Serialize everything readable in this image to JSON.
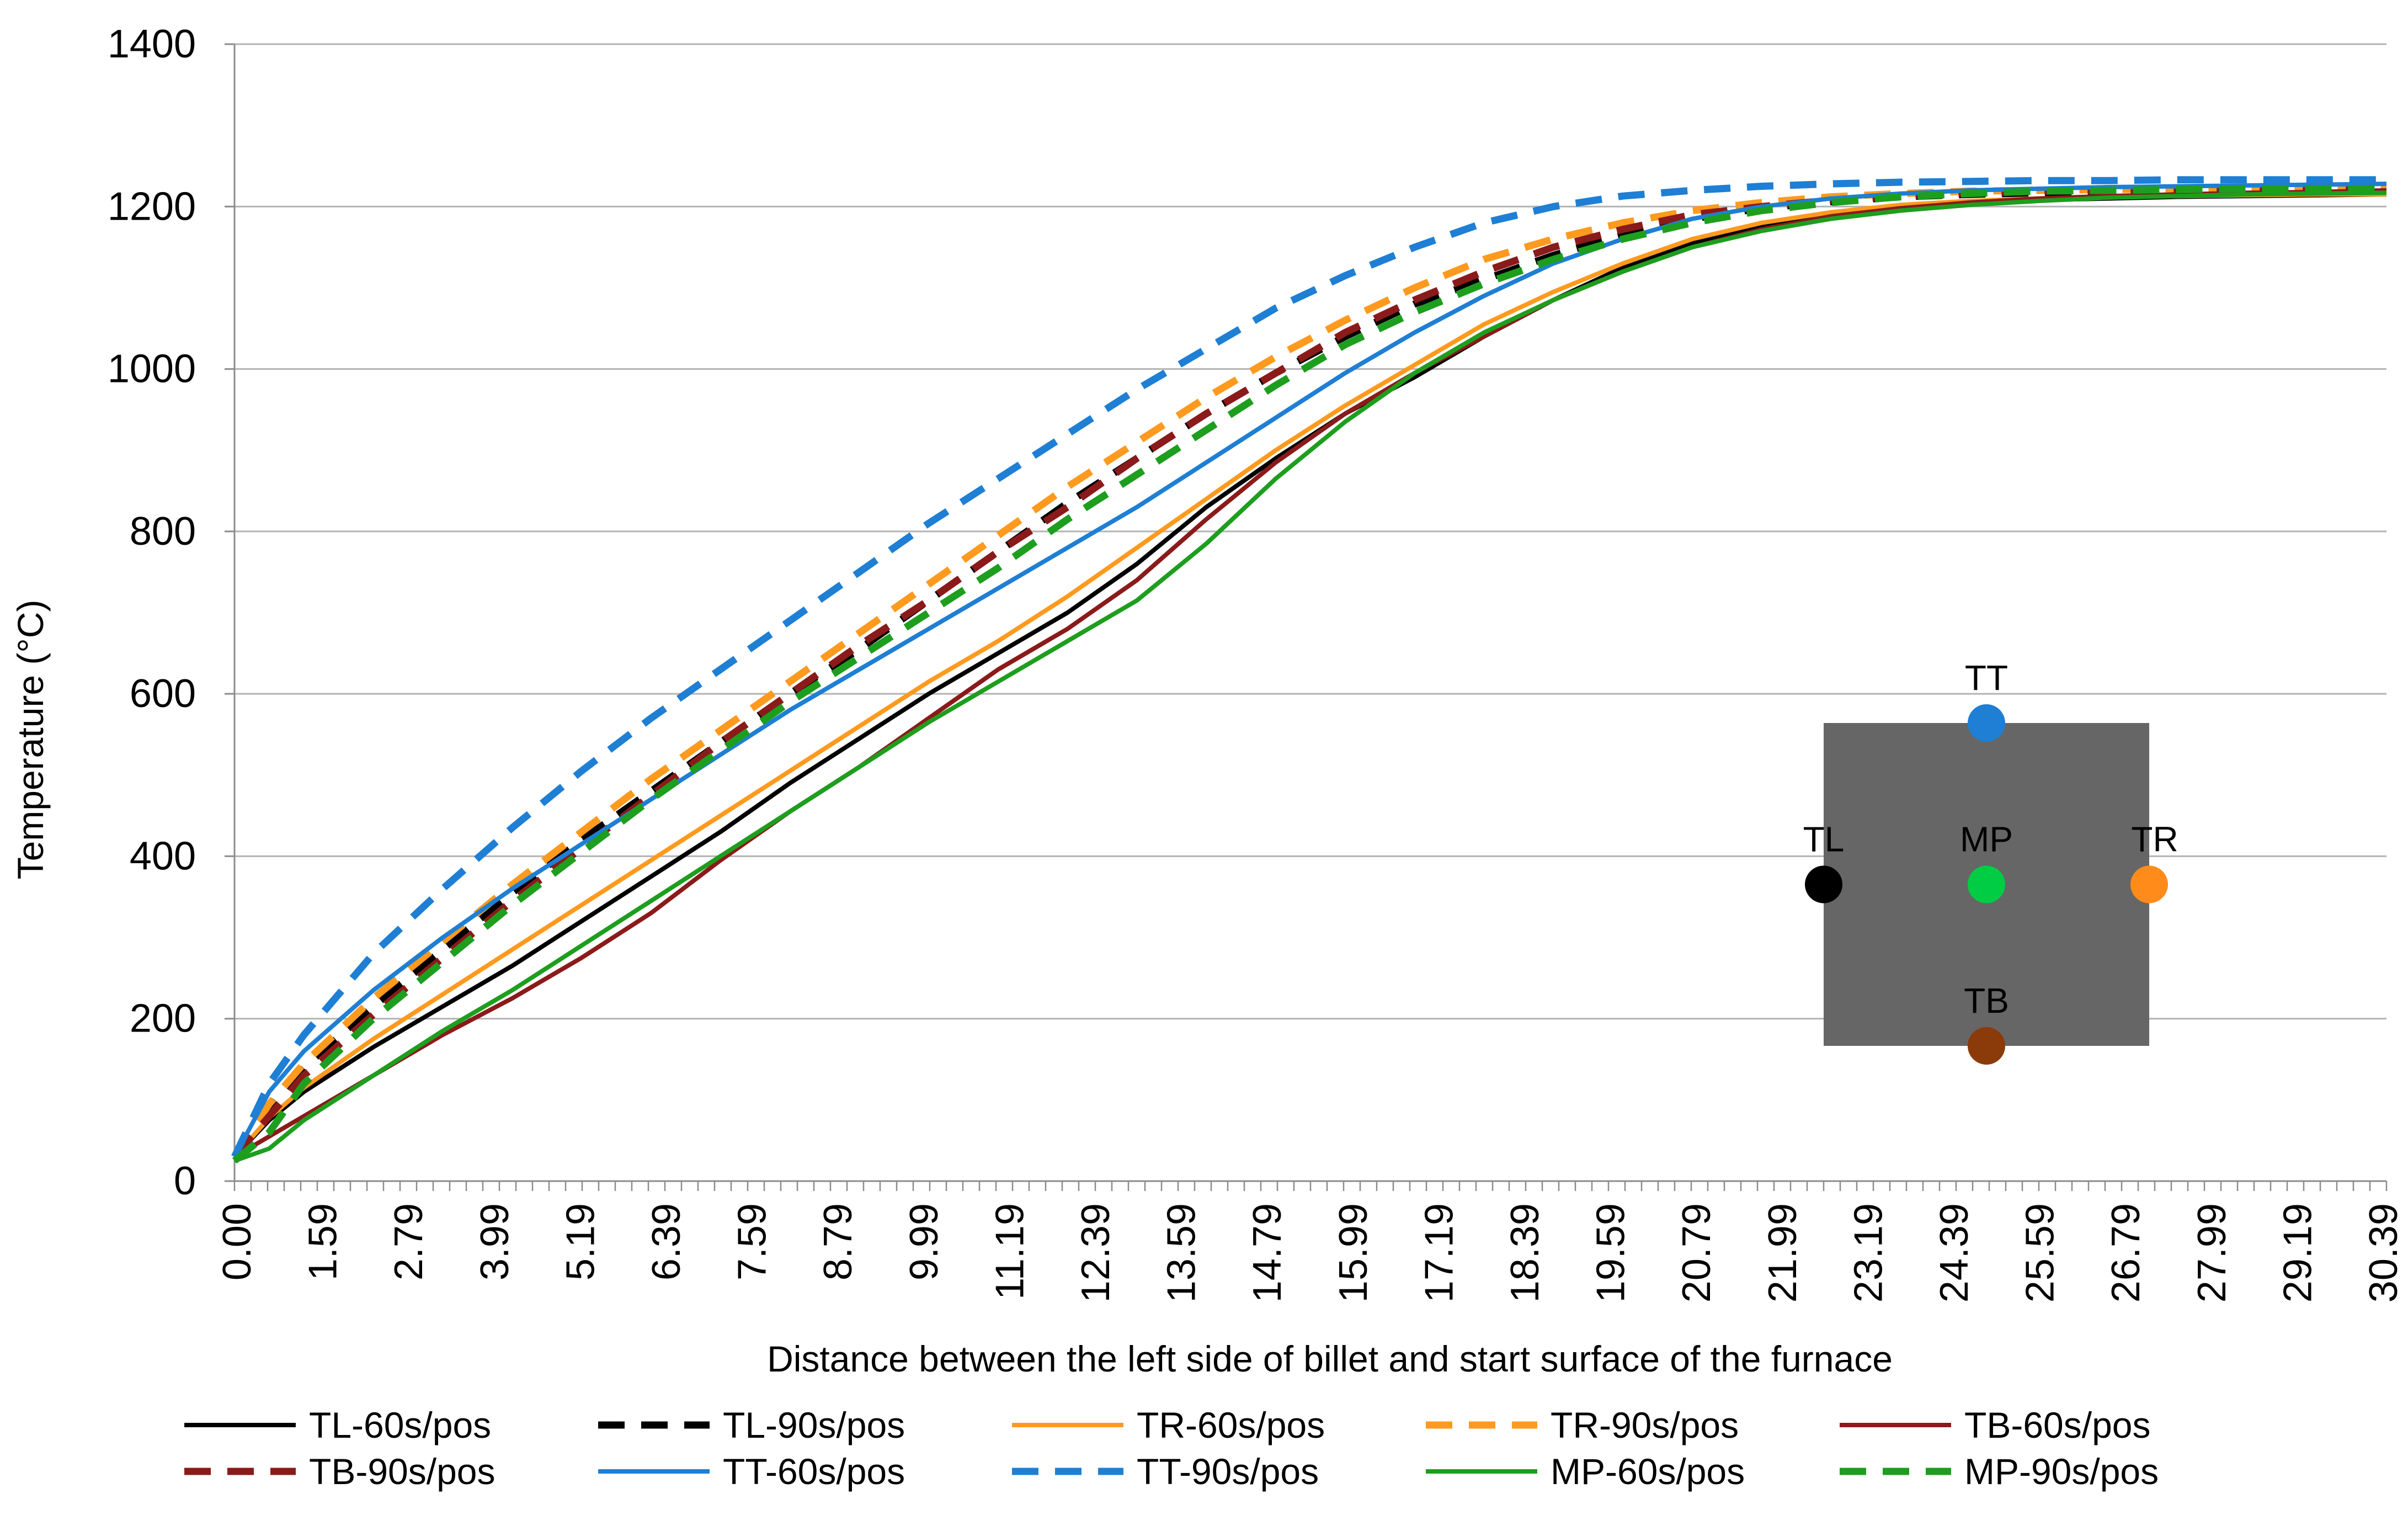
{
  "chart_data": {
    "type": "line",
    "xlabel": "Distance between the left side of billet and start surface of the furnace",
    "ylabel": "Temperature (°C)",
    "xlim": [
      0.0,
      31.0
    ],
    "ylim": [
      0,
      1400
    ],
    "yticks": [
      0,
      200,
      400,
      600,
      800,
      1000,
      1200,
      1400
    ],
    "xtick_labels": [
      "0.00",
      "1.59",
      "2.79",
      "3.99",
      "5.19",
      "6.39",
      "7.59",
      "8.79",
      "9.99",
      "11.19",
      "12.39",
      "13.59",
      "14.79",
      "15.99",
      "17.19",
      "18.39",
      "19.59",
      "20.79",
      "21.99",
      "23.19",
      "24.39",
      "25.59",
      "26.79",
      "27.99",
      "29.19",
      "30.39"
    ],
    "grid": "horizontal",
    "legend_position": "bottom",
    "series": [
      {
        "name": "TL-60s/pos",
        "color": "#000000",
        "dash": false,
        "x": [
          0.0,
          0.5,
          1.0,
          2.0,
          3.0,
          4.0,
          5.0,
          6.0,
          7.0,
          8.0,
          9.0,
          10.0,
          11.0,
          12.0,
          13.0,
          14.0,
          15.0,
          16.0,
          17.0,
          18.0,
          19.0,
          20.0,
          21.0,
          22.0,
          23.0,
          24.0,
          25.0,
          26.0,
          27.0,
          28.0,
          29.0,
          30.0,
          31.0
        ],
        "y": [
          30,
          75,
          110,
          165,
          215,
          265,
          320,
          375,
          430,
          490,
          545,
          600,
          650,
          700,
          760,
          830,
          890,
          945,
          990,
          1040,
          1085,
          1125,
          1155,
          1175,
          1190,
          1200,
          1205,
          1208,
          1210,
          1212,
          1213,
          1214,
          1215
        ]
      },
      {
        "name": "TL-90s/pos",
        "color": "#000000",
        "dash": true,
        "x": [
          0.0,
          0.5,
          1.0,
          2.0,
          3.0,
          4.0,
          5.0,
          6.0,
          7.0,
          8.0,
          9.0,
          10.0,
          11.0,
          12.0,
          13.0,
          14.0,
          15.0,
          16.0,
          17.0,
          18.0,
          19.0,
          20.0,
          21.0,
          22.0,
          23.0,
          24.0,
          25.0,
          26.0,
          27.0,
          28.0,
          29.0,
          30.0,
          31.0
        ],
        "y": [
          30,
          90,
          140,
          215,
          285,
          355,
          420,
          480,
          540,
          600,
          655,
          715,
          775,
          835,
          890,
          945,
          995,
          1040,
          1080,
          1110,
          1140,
          1165,
          1185,
          1198,
          1206,
          1212,
          1215,
          1217,
          1218,
          1219,
          1220,
          1220,
          1220
        ]
      },
      {
        "name": "TR-60s/pos",
        "color": "#ff9a1e",
        "dash": false,
        "x": [
          0.0,
          0.5,
          1.0,
          2.0,
          3.0,
          4.0,
          5.0,
          6.0,
          7.0,
          8.0,
          9.0,
          10.0,
          11.0,
          12.0,
          13.0,
          14.0,
          15.0,
          16.0,
          17.0,
          18.0,
          19.0,
          20.0,
          21.0,
          22.0,
          23.0,
          24.0,
          25.0,
          26.0,
          27.0,
          28.0,
          29.0,
          30.0,
          31.0
        ],
        "y": [
          30,
          78,
          115,
          175,
          230,
          285,
          340,
          395,
          450,
          505,
          560,
          615,
          665,
          720,
          780,
          840,
          900,
          955,
          1005,
          1055,
          1095,
          1130,
          1160,
          1180,
          1193,
          1202,
          1207,
          1210,
          1212,
          1213,
          1214,
          1215,
          1215
        ]
      },
      {
        "name": "TR-90s/pos",
        "color": "#ff9a1e",
        "dash": true,
        "x": [
          0.0,
          0.5,
          1.0,
          2.0,
          3.0,
          4.0,
          5.0,
          6.0,
          7.0,
          8.0,
          9.0,
          10.0,
          11.0,
          12.0,
          13.0,
          14.0,
          15.0,
          16.0,
          17.0,
          18.0,
          19.0,
          20.0,
          21.0,
          22.0,
          23.0,
          24.0,
          25.0,
          26.0,
          27.0,
          28.0,
          29.0,
          30.0,
          31.0
        ],
        "y": [
          30,
          95,
          145,
          225,
          295,
          365,
          430,
          495,
          555,
          615,
          675,
          735,
          795,
          855,
          910,
          965,
          1015,
          1060,
          1100,
          1135,
          1160,
          1180,
          1195,
          1205,
          1212,
          1216,
          1219,
          1220,
          1221,
          1222,
          1222,
          1223,
          1223
        ]
      },
      {
        "name": "TB-60s/pos",
        "color": "#8b1a1a",
        "dash": false,
        "x": [
          0.0,
          0.5,
          1.0,
          2.0,
          3.0,
          4.0,
          5.0,
          6.0,
          7.0,
          8.0,
          9.0,
          10.0,
          11.0,
          12.0,
          13.0,
          14.0,
          15.0,
          16.0,
          17.0,
          18.0,
          19.0,
          20.0,
          21.0,
          22.0,
          23.0,
          24.0,
          25.0,
          26.0,
          27.0,
          28.0,
          29.0,
          30.0,
          31.0
        ],
        "y": [
          30,
          55,
          80,
          130,
          180,
          225,
          275,
          330,
          395,
          455,
          510,
          570,
          630,
          680,
          740,
          815,
          885,
          945,
          995,
          1040,
          1085,
          1120,
          1150,
          1172,
          1188,
          1198,
          1205,
          1210,
          1213,
          1215,
          1217,
          1218,
          1220
        ]
      },
      {
        "name": "TB-90s/pos",
        "color": "#8b1a1a",
        "dash": true,
        "x": [
          0.0,
          0.5,
          1.0,
          2.0,
          3.0,
          4.0,
          5.0,
          6.0,
          7.0,
          8.0,
          9.0,
          10.0,
          11.0,
          12.0,
          13.0,
          14.0,
          15.0,
          16.0,
          17.0,
          18.0,
          19.0,
          20.0,
          21.0,
          22.0,
          23.0,
          24.0,
          25.0,
          26.0,
          27.0,
          28.0,
          29.0,
          30.0,
          31.0
        ],
        "y": [
          30,
          80,
          130,
          205,
          275,
          345,
          410,
          475,
          540,
          600,
          660,
          715,
          775,
          830,
          890,
          945,
          995,
          1045,
          1085,
          1120,
          1150,
          1172,
          1190,
          1200,
          1208,
          1213,
          1217,
          1219,
          1220,
          1221,
          1222,
          1222,
          1222
        ]
      },
      {
        "name": "TT-60s/pos",
        "color": "#1e7fd4",
        "dash": false,
        "x": [
          0.0,
          0.5,
          1.0,
          2.0,
          3.0,
          4.0,
          5.0,
          6.0,
          7.0,
          8.0,
          9.0,
          10.0,
          11.0,
          12.0,
          13.0,
          14.0,
          15.0,
          16.0,
          17.0,
          18.0,
          19.0,
          20.0,
          21.0,
          22.0,
          23.0,
          24.0,
          25.0,
          26.0,
          27.0,
          28.0,
          29.0,
          30.0,
          31.0
        ],
        "y": [
          30,
          110,
          160,
          235,
          300,
          360,
          415,
          470,
          525,
          580,
          630,
          680,
          730,
          780,
          830,
          885,
          940,
          995,
          1045,
          1090,
          1130,
          1160,
          1185,
          1200,
          1210,
          1216,
          1220,
          1222,
          1224,
          1225,
          1226,
          1227,
          1228
        ]
      },
      {
        "name": "TT-90s/pos",
        "color": "#1e7fd4",
        "dash": true,
        "x": [
          0.0,
          0.5,
          1.0,
          2.0,
          3.0,
          4.0,
          5.0,
          6.0,
          7.0,
          8.0,
          9.0,
          10.0,
          11.0,
          12.0,
          13.0,
          14.0,
          15.0,
          16.0,
          17.0,
          18.0,
          19.0,
          20.0,
          21.0,
          22.0,
          23.0,
          24.0,
          25.0,
          26.0,
          27.0,
          28.0,
          29.0,
          30.0,
          31.0
        ],
        "y": [
          30,
          120,
          180,
          280,
          360,
          435,
          505,
          570,
          630,
          690,
          750,
          810,
          865,
          920,
          975,
          1025,
          1075,
          1115,
          1150,
          1180,
          1200,
          1213,
          1220,
          1225,
          1228,
          1230,
          1231,
          1232,
          1232,
          1233,
          1233,
          1233,
          1233
        ]
      },
      {
        "name": "MP-60s/pos",
        "color": "#1e9e1e",
        "dash": false,
        "x": [
          0.0,
          0.5,
          1.0,
          2.0,
          3.0,
          4.0,
          5.0,
          6.0,
          7.0,
          8.0,
          9.0,
          10.0,
          11.0,
          12.0,
          13.0,
          14.0,
          15.0,
          16.0,
          17.0,
          18.0,
          19.0,
          20.0,
          21.0,
          22.0,
          23.0,
          24.0,
          25.0,
          26.0,
          27.0,
          28.0,
          29.0,
          30.0,
          31.0
        ],
        "y": [
          25,
          40,
          75,
          130,
          185,
          235,
          290,
          345,
          400,
          455,
          510,
          565,
          615,
          665,
          715,
          785,
          865,
          935,
          995,
          1045,
          1085,
          1120,
          1150,
          1170,
          1185,
          1195,
          1202,
          1207,
          1211,
          1213,
          1215,
          1216,
          1217
        ]
      },
      {
        "name": "MP-90s/pos",
        "color": "#1e9e1e",
        "dash": true,
        "x": [
          0.0,
          0.5,
          1.0,
          2.0,
          3.0,
          4.0,
          5.0,
          6.0,
          7.0,
          8.0,
          9.0,
          10.0,
          11.0,
          12.0,
          13.0,
          14.0,
          15.0,
          16.0,
          17.0,
          18.0,
          19.0,
          20.0,
          21.0,
          22.0,
          23.0,
          24.0,
          25.0,
          26.0,
          27.0,
          28.0,
          29.0,
          30.0,
          31.0
        ],
        "y": [
          25,
          60,
          120,
          200,
          270,
          340,
          405,
          470,
          530,
          590,
          645,
          700,
          755,
          815,
          870,
          925,
          980,
          1030,
          1070,
          1105,
          1135,
          1160,
          1180,
          1195,
          1205,
          1212,
          1216,
          1219,
          1220,
          1221,
          1222,
          1222,
          1222
        ]
      }
    ],
    "inset": {
      "box_color": "#666666",
      "points": [
        {
          "label": "TT",
          "color": "#1e7fd4"
        },
        {
          "label": "TL",
          "color": "#000000"
        },
        {
          "label": "MP",
          "color": "#00cc44"
        },
        {
          "label": "TR",
          "color": "#ff8c1a"
        },
        {
          "label": "TB",
          "color": "#8b3a0a"
        }
      ]
    }
  }
}
